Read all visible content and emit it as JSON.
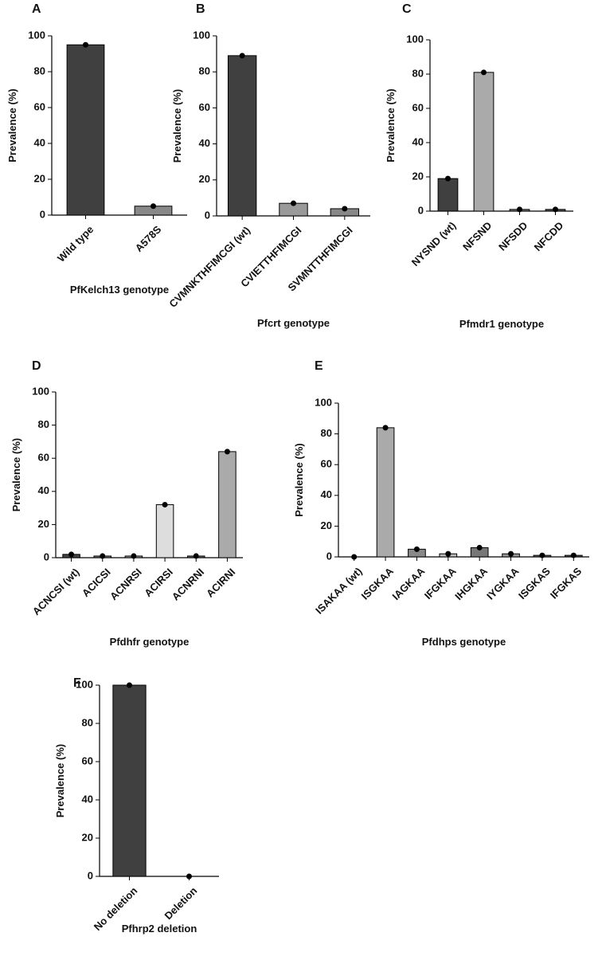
{
  "chart_data": [
    {
      "type": "bar",
      "label": "A",
      "ylabel": "Prevalence (%)",
      "xlabel": "PfKelch13 genotype",
      "categories": [
        "Wild type",
        "A578S"
      ],
      "values": [
        95,
        5
      ],
      "colors": [
        "#404040",
        "#888888"
      ],
      "ylim": [
        0,
        100
      ],
      "yticks": [
        0,
        20,
        40,
        60,
        80,
        100
      ]
    },
    {
      "type": "bar",
      "label": "B",
      "ylabel": "Prevalence (%)",
      "xlabel": "Pfcrt genotype",
      "categories": [
        "CVMNKTHFIMCGI (wt)",
        "CVIETTHFIMCGI",
        "SVMNTTHFIMCGI"
      ],
      "values": [
        89,
        7,
        4
      ],
      "colors": [
        "#404040",
        "#9a9a9a",
        "#888888"
      ],
      "ylim": [
        0,
        100
      ],
      "yticks": [
        0,
        20,
        40,
        60,
        80,
        100
      ]
    },
    {
      "type": "bar",
      "label": "C",
      "ylabel": "Prevalence (%)",
      "xlabel": "Pfmdr1 genotype",
      "categories": [
        "NYSND (wt)",
        "NFSND",
        "NFSDD",
        "NFCDD"
      ],
      "values": [
        19,
        81,
        1,
        1
      ],
      "colors": [
        "#404040",
        "#aaaaaa",
        "#777777",
        "#555555"
      ],
      "ylim": [
        0,
        100
      ],
      "yticks": [
        0,
        20,
        40,
        60,
        80,
        100
      ]
    },
    {
      "type": "bar",
      "label": "D",
      "ylabel": "Prevalence (%)",
      "xlabel": "Pfdhfr genotype",
      "categories": [
        "ACNCSI (wt)",
        "ACICSI",
        "ACNRSI",
        "ACIRSI",
        "ACNRNI",
        "ACIRNI"
      ],
      "values": [
        2,
        1,
        1,
        32,
        1,
        64
      ],
      "colors": [
        "#444444",
        "#777777",
        "#999999",
        "#dddddd",
        "#666666",
        "#aaaaaa"
      ],
      "ylim": [
        0,
        100
      ],
      "yticks": [
        0,
        20,
        40,
        60,
        80,
        100
      ]
    },
    {
      "type": "bar",
      "label": "E",
      "ylabel": "Prevalence (%)",
      "xlabel": "Pfdhps genotype",
      "categories": [
        "ISAKAA (wt)",
        "ISGKAA",
        "IAGKAA",
        "IFGKAA",
        "IHGKAA",
        "IYGKAA",
        "ISGKAS",
        "IFGKAS"
      ],
      "values": [
        0,
        84,
        5,
        2,
        6,
        2,
        1,
        1
      ],
      "colors": [
        "#444444",
        "#aaaaaa",
        "#888888",
        "#bbbbbb",
        "#777777",
        "#999999",
        "#666666",
        "#555555"
      ],
      "ylim": [
        0,
        100
      ],
      "yticks": [
        0,
        20,
        40,
        60,
        80,
        100
      ]
    },
    {
      "type": "bar",
      "label": "F",
      "ylabel": "Prevalence (%)",
      "xlabel": "Pfhrp2 deletion",
      "categories": [
        "No deletion",
        "Deletion"
      ],
      "values": [
        100,
        0
      ],
      "colors": [
        "#404040",
        "#888888"
      ],
      "ylim": [
        0,
        100
      ],
      "yticks": [
        0,
        20,
        40,
        60,
        80,
        100
      ]
    }
  ]
}
